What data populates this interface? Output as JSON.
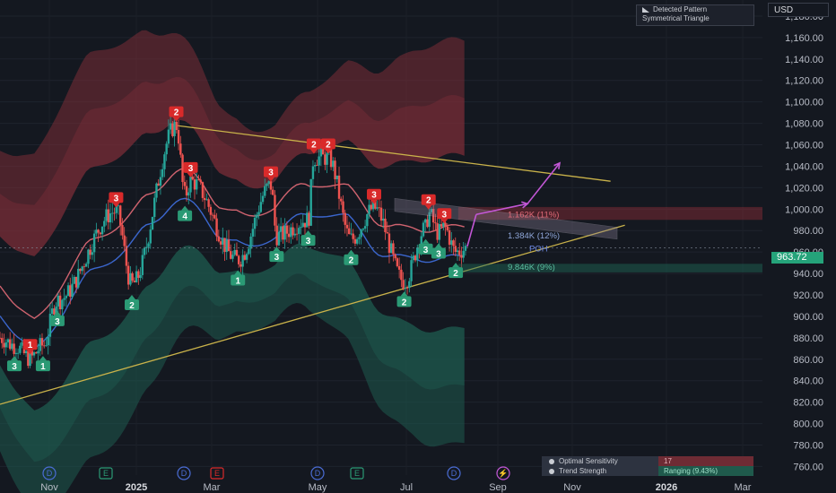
{
  "pattern": {
    "title": "Detected Pattern",
    "name": "Symmetrical Triangle"
  },
  "currency": "USD",
  "last_price": "963.72",
  "legend": [
    {
      "label": "Optimal Sensitivity",
      "value": "17"
    },
    {
      "label": "Trend Strength",
      "value": "Ranging (9.43%)"
    }
  ],
  "projections": [
    {
      "label": "1.162K (11%)",
      "price": 995,
      "color": "#e06a78"
    },
    {
      "label": "1.384K (12%)",
      "price": 975,
      "color": "#8fa6d8"
    },
    {
      "label": "9.846K (9%)",
      "price": 946,
      "color": "#5bbfa0"
    },
    {
      "label": "POH",
      "price": 963,
      "color": "#6b86e0"
    }
  ],
  "colors": {
    "bull": "#26a69a",
    "bear": "#ef5350",
    "triangle": "#c9b24a",
    "arrow": "#c357d6",
    "band_upper": "#7a2d37",
    "band_lower": "#1e5b4f"
  },
  "chart_data": {
    "type": "candlestick",
    "x_axis": [
      "Nov",
      "2025",
      "Mar",
      "May",
      "Jul",
      "Sep",
      "Nov",
      "2026",
      "Mar"
    ],
    "x_range": [
      "2024-10-15",
      "2026-03-31"
    ],
    "y_ticks": [
      760,
      780,
      800,
      820,
      840,
      860,
      880,
      900,
      920,
      940,
      960,
      980,
      1000,
      1020,
      1040,
      1060,
      1080,
      1100,
      1120,
      1140,
      1160,
      1180
    ],
    "y_range": [
      752,
      1195
    ],
    "swing_labels": [
      {
        "date": "2024-10-25",
        "price": 853,
        "text": "3",
        "type": "low"
      },
      {
        "date": "2024-11-05",
        "price": 873,
        "text": "1",
        "type": "high"
      },
      {
        "date": "2024-11-14",
        "price": 853,
        "text": "1",
        "type": "low"
      },
      {
        "date": "2024-11-24",
        "price": 895,
        "text": "3",
        "type": "low"
      },
      {
        "date": "2025-01-15",
        "price": 910,
        "text": "2",
        "type": "low"
      },
      {
        "date": "2025-01-04",
        "price": 1010,
        "text": "3",
        "type": "high"
      },
      {
        "date": "2025-02-15",
        "price": 1090,
        "text": "2",
        "type": "high"
      },
      {
        "date": "2025-02-25",
        "price": 1038,
        "text": "3",
        "type": "high"
      },
      {
        "date": "2025-02-21",
        "price": 993,
        "text": "4",
        "type": "low"
      },
      {
        "date": "2025-03-30",
        "price": 933,
        "text": "1",
        "type": "low"
      },
      {
        "date": "2025-04-22",
        "price": 1034,
        "text": "3",
        "type": "high"
      },
      {
        "date": "2025-04-26",
        "price": 955,
        "text": "3",
        "type": "low"
      },
      {
        "date": "2025-05-18",
        "price": 970,
        "text": "3",
        "type": "low"
      },
      {
        "date": "2025-05-22",
        "price": 1060,
        "text": "2",
        "type": "high"
      },
      {
        "date": "2025-06-01",
        "price": 1060,
        "text": "2",
        "type": "high"
      },
      {
        "date": "2025-06-17",
        "price": 952,
        "text": "2",
        "type": "low"
      },
      {
        "date": "2025-07-03",
        "price": 1013,
        "text": "3",
        "type": "high"
      },
      {
        "date": "2025-07-24",
        "price": 913,
        "text": "2",
        "type": "low"
      },
      {
        "date": "2025-08-08",
        "price": 962,
        "text": "3",
        "type": "low"
      },
      {
        "date": "2025-08-10",
        "price": 1008,
        "text": "2",
        "type": "high"
      },
      {
        "date": "2025-08-21",
        "price": 995,
        "text": "3",
        "type": "high"
      },
      {
        "date": "2025-08-17",
        "price": 958,
        "text": "3",
        "type": "low"
      },
      {
        "date": "2025-08-29",
        "price": 940,
        "text": "2",
        "type": "low"
      }
    ],
    "triangle": {
      "upper": [
        {
          "date": "2025-02-15",
          "price": 1078
        },
        {
          "date": "2025-12-15",
          "price": 1026
        }
      ],
      "lower": [
        {
          "date": "2024-10-15",
          "price": 818
        },
        {
          "date": "2025-12-25",
          "price": 985
        }
      ]
    },
    "last_price": 963.72
  }
}
